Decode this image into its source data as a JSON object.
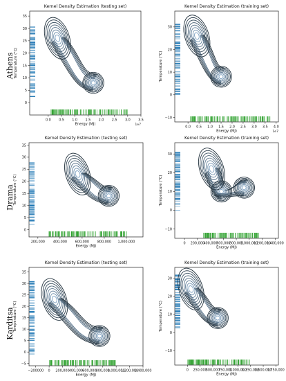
{
  "row_labels": [
    "Athens",
    "Drama",
    "Karditsa"
  ],
  "colors": {
    "contour_outer": "#2b3a45",
    "contour_inner": "#8fb4d6",
    "rug_y": "#1f77b4",
    "rug_x": "#2ca02c"
  },
  "chart_data": [
    {
      "type": "kde_contour",
      "title": "Kernel Density Estimation (testing set)",
      "xlabel": "Energy (MJ)",
      "ylabel": "Temperature (°C)",
      "x_multiplier": "1e7",
      "xlim": [
        -0.7,
        3.5
      ],
      "ylim": [
        -5,
        37
      ],
      "xticks": [
        0.0,
        0.5,
        1.0,
        1.5,
        2.0,
        2.5,
        3.0,
        3.5
      ],
      "xtick_labels": [
        "0.0",
        "0.5",
        "1.0",
        "1.5",
        "2.0",
        "2.5",
        "3.0",
        "3.5"
      ],
      "yticks": [
        0,
        5,
        10,
        15,
        20,
        25,
        30,
        35
      ],
      "ytick_labels": [
        "0",
        "5",
        "10",
        "15",
        "20",
        "25",
        "30",
        "35"
      ],
      "modes": [
        {
          "x": 0.35,
          "y": 26
        },
        {
          "x": 1.7,
          "y": 8
        }
      ],
      "levels": 8,
      "rug_y_range": [
        2,
        31
      ],
      "rug_x_range": [
        0.1,
        3.0
      ]
    },
    {
      "type": "kde_contour",
      "title": "Kernel Density Estimation (training set)",
      "xlabel": "Energy (MJ)",
      "ylabel": "Temperature (°C)",
      "x_multiplier": "1e7",
      "xlim": [
        -0.6,
        4.1
      ],
      "ylim": [
        -12,
        37
      ],
      "xticks": [
        0.0,
        0.5,
        1.0,
        1.5,
        2.0,
        2.5,
        3.0,
        3.5,
        4.0
      ],
      "xtick_labels": [
        "0.0",
        "0.5",
        "1.0",
        "1.5",
        "2.0",
        "2.5",
        "3.0",
        "3.5",
        "4.0"
      ],
      "yticks": [
        -10,
        0,
        10,
        20,
        30
      ],
      "ytick_labels": [
        "−10",
        "0",
        "10",
        "20",
        "30"
      ],
      "modes": [
        {
          "x": 0.4,
          "y": 26
        },
        {
          "x": 1.5,
          "y": 8
        }
      ],
      "levels": 8,
      "rug_y_range": [
        0,
        32
      ],
      "rug_x_range": [
        0.1,
        3.8
      ]
    },
    {
      "type": "kde_contour",
      "title": "Kernel Density Estimation (testing set)",
      "xlabel": "Energy (MJ)",
      "ylabel": "Temperature (°C)",
      "xlim": [
        120000,
        1150000
      ],
      "ylim": [
        -3,
        36
      ],
      "xticks": [
        200000,
        400000,
        600000,
        800000,
        1000000
      ],
      "xtick_labels": [
        "200,000",
        "400,000",
        "600,000",
        "800,000",
        "1,000,000"
      ],
      "yticks": [
        0,
        5,
        10,
        15,
        20,
        25,
        30,
        35
      ],
      "ytick_labels": [
        "0",
        "5",
        "10",
        "15",
        "20",
        "25",
        "30",
        "35"
      ],
      "modes": [
        {
          "x": 560000,
          "y": 23
        },
        {
          "x": 840000,
          "y": 14
        }
      ],
      "levels": 8,
      "rug_y_range": [
        2,
        28
      ],
      "rug_x_range": [
        300000,
        1000000
      ]
    },
    {
      "type": "kde_contour",
      "title": "Kernel Density Estimation (training set)",
      "xlabel": "Energy (MJ)",
      "ylabel": "Temperature (°C)",
      "xlim": [
        -150000,
        1450000
      ],
      "ylim": [
        -15,
        36
      ],
      "xticks": [
        0,
        200000,
        400000,
        600000,
        800000,
        1000000,
        1200000,
        1400000
      ],
      "xtick_labels": [
        "0",
        "200,000",
        "400,000",
        "600,000",
        "800,000",
        "1,000,000",
        "1,200,000",
        "1,400,000"
      ],
      "yticks": [
        -10,
        0,
        10,
        20,
        30
      ],
      "ytick_labels": [
        "−10",
        "0",
        "10",
        "20",
        "30"
      ],
      "modes": [
        {
          "x": 420000,
          "y": 22
        },
        {
          "x": 570000,
          "y": 10
        },
        {
          "x": 920000,
          "y": 12
        }
      ],
      "levels": 8,
      "rug_y_range": [
        0,
        31
      ],
      "rug_x_range": [
        280000,
        1150000
      ]
    },
    {
      "type": "kde_contour",
      "title": "Kernel Density Estimation (testing set)",
      "xlabel": "Energy (MJ)",
      "ylabel": "Temperature (°C)",
      "xlim": [
        -300000,
        1400000
      ],
      "ylim": [
        -6,
        37
      ],
      "xticks": [
        -200000,
        0,
        200000,
        400000,
        600000,
        800000,
        1000000,
        1200000,
        1400000
      ],
      "xtick_labels": [
        "−200000",
        "0",
        "200,000",
        "400,000",
        "600,000",
        "800,000",
        "1,000,000",
        "1,200,000",
        "1,400,000"
      ],
      "yticks": [
        -5,
        0,
        5,
        10,
        15,
        20,
        25,
        30,
        35
      ],
      "ytick_labels": [
        "−5",
        "0",
        "5",
        "10",
        "15",
        "20",
        "25",
        "30",
        "35"
      ],
      "modes": [
        {
          "x": 80000,
          "y": 23
        },
        {
          "x": 750000,
          "y": 7
        }
      ],
      "levels": 8,
      "rug_y_range": [
        -1,
        31
      ],
      "rug_x_range": [
        0,
        1000000
      ]
    },
    {
      "type": "kde_contour",
      "title": "Kernel Density Estimation (training set)",
      "xlabel": "Energy (MJ)",
      "ylabel": "Temperature (°C)",
      "xlim": [
        -250000,
        1800000
      ],
      "ylim": [
        -18,
        36
      ],
      "xticks": [
        0,
        250000,
        500000,
        750000,
        1000000,
        1250000,
        1500000,
        1750000
      ],
      "xtick_labels": [
        "0",
        "250,000",
        "500,000",
        "750,000",
        "1,000,000",
        "1,250,000",
        "1,500,000",
        "1,750,000"
      ],
      "yticks": [
        -10,
        0,
        10,
        20,
        30
      ],
      "ytick_labels": [
        "−10",
        "0",
        "10",
        "20",
        "30"
      ],
      "modes": [
        {
          "x": 70000,
          "y": 24
        },
        {
          "x": 600000,
          "y": 8
        }
      ],
      "levels": 8,
      "rug_y_range": [
        2,
        32
      ],
      "rug_x_range": [
        0,
        1250000
      ]
    }
  ]
}
